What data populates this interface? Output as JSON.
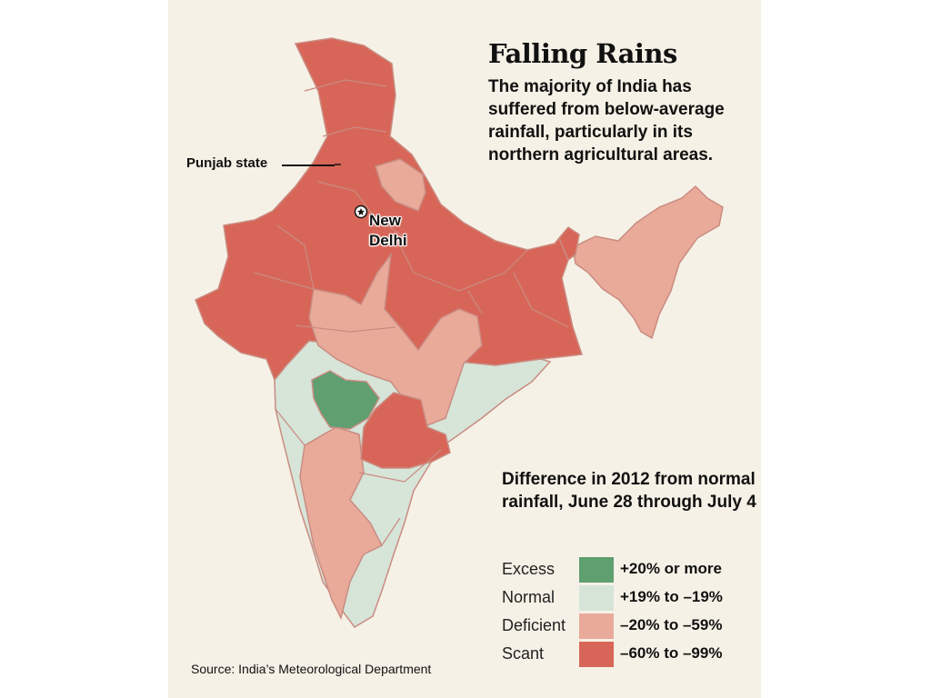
{
  "title": "Falling Rains",
  "subtitle": "The majority of India has suffered from below-average rainfall, particularly in its northern agricultural areas.",
  "legend": {
    "heading": "Difference in 2012 from normal rainfall, June 28 through July 4",
    "items": [
      {
        "label": "Excess",
        "range": "+20% or more",
        "color": "#5f9f70"
      },
      {
        "label": "Normal",
        "range": "+19% to –19%",
        "color": "#d7e4d8"
      },
      {
        "label": "Deficient",
        "range": "–20% to –59%",
        "color": "#e9aa9a"
      },
      {
        "label": "Scant",
        "range": "–60% to –99%",
        "color": "#d86658"
      }
    ]
  },
  "labels": {
    "punjab": "Punjab state",
    "capital_line1": "New",
    "capital_line2": "Delhi"
  },
  "source": "Source: India’s Meteorological Department",
  "colors": {
    "background": "#f6f1e6",
    "border": "#c98c82"
  }
}
